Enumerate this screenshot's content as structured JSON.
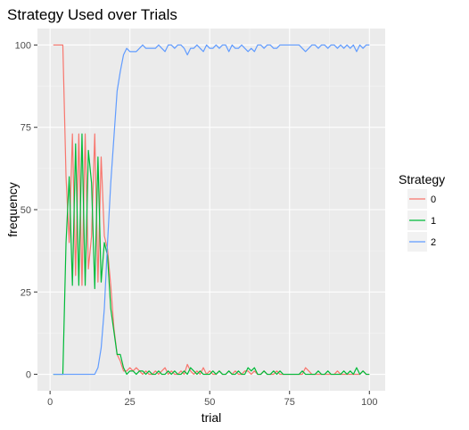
{
  "chart_data": {
    "type": "line",
    "title": "Strategy Used over Trials",
    "xlabel": "trial",
    "ylabel": "frequency",
    "xlim": [
      -3.95,
      104.95
    ],
    "ylim": [
      -5,
      105
    ],
    "xticks": [
      0,
      25,
      50,
      75,
      100
    ],
    "yticks": [
      0,
      25,
      50,
      75,
      100
    ],
    "grid": true,
    "legend": {
      "title": "Strategy",
      "placement": "right"
    },
    "series": [
      {
        "name": "0",
        "color": "#F8766D",
        "x": [
          1,
          2,
          3,
          4,
          5,
          6,
          7,
          8,
          9,
          10,
          11,
          12,
          13,
          14,
          15,
          16,
          17,
          18,
          19,
          20,
          21,
          22,
          23,
          24,
          25,
          26,
          27,
          28,
          29,
          30,
          31,
          32,
          33,
          34,
          35,
          36,
          37,
          38,
          39,
          40,
          41,
          42,
          43,
          44,
          45,
          46,
          47,
          48,
          49,
          50,
          51,
          52,
          53,
          54,
          55,
          56,
          57,
          58,
          59,
          60,
          61,
          62,
          63,
          64,
          65,
          66,
          67,
          68,
          69,
          70,
          71,
          72,
          73,
          74,
          75,
          76,
          77,
          78,
          79,
          80,
          81,
          82,
          83,
          84,
          85,
          86,
          87,
          88,
          89,
          90,
          91,
          92,
          93,
          94,
          95,
          96,
          97,
          98,
          99,
          100
        ],
        "y": [
          100,
          100,
          100,
          100,
          60,
          40,
          73,
          30,
          73,
          27,
          73,
          32,
          42,
          73,
          28,
          66,
          42,
          38,
          27,
          14,
          6,
          4,
          1,
          1,
          2,
          1,
          2,
          1,
          0,
          1,
          0,
          0,
          1,
          0,
          1,
          2,
          0,
          1,
          0,
          0,
          1,
          0,
          3,
          1,
          0,
          1,
          0,
          2,
          0,
          1,
          0,
          0,
          1,
          0,
          0,
          1,
          0,
          1,
          0,
          0,
          1,
          1,
          0,
          1,
          0,
          0,
          1,
          0,
          0,
          0,
          1,
          0,
          0,
          0,
          0,
          0,
          0,
          0,
          0,
          2,
          1,
          0,
          0,
          0,
          0,
          0,
          0,
          0,
          0,
          1,
          0,
          0,
          0,
          0,
          0,
          0,
          0,
          1,
          0,
          0
        ]
      },
      {
        "name": "1",
        "color": "#00BA38",
        "x": [
          1,
          2,
          3,
          4,
          5,
          6,
          7,
          8,
          9,
          10,
          11,
          12,
          13,
          14,
          15,
          16,
          17,
          18,
          19,
          20,
          21,
          22,
          23,
          24,
          25,
          26,
          27,
          28,
          29,
          30,
          31,
          32,
          33,
          34,
          35,
          36,
          37,
          38,
          39,
          40,
          41,
          42,
          43,
          44,
          45,
          46,
          47,
          48,
          49,
          50,
          51,
          52,
          53,
          54,
          55,
          56,
          57,
          58,
          59,
          60,
          61,
          62,
          63,
          64,
          65,
          66,
          67,
          68,
          69,
          70,
          71,
          72,
          73,
          74,
          75,
          76,
          77,
          78,
          79,
          80,
          81,
          82,
          83,
          84,
          85,
          86,
          87,
          88,
          89,
          90,
          91,
          92,
          93,
          94,
          95,
          96,
          97,
          98,
          99,
          100
        ],
        "y": [
          0,
          0,
          0,
          0,
          40,
          60,
          27,
          70,
          27,
          73,
          27,
          68,
          58,
          26,
          66,
          28,
          40,
          36,
          20,
          13,
          6,
          6,
          2,
          0,
          1,
          1,
          0,
          1,
          1,
          0,
          1,
          0,
          0,
          1,
          0,
          0,
          1,
          0,
          1,
          0,
          0,
          1,
          0,
          2,
          1,
          0,
          1,
          0,
          0,
          0,
          1,
          0,
          1,
          0,
          0,
          1,
          0,
          0,
          1,
          0,
          0,
          2,
          1,
          2,
          0,
          0,
          1,
          0,
          0,
          1,
          0,
          1,
          0,
          0,
          0,
          0,
          0,
          0,
          1,
          0,
          0,
          0,
          0,
          1,
          0,
          0,
          1,
          0,
          0,
          0,
          0,
          1,
          0,
          1,
          0,
          2,
          0,
          1,
          0,
          0
        ]
      },
      {
        "name": "2",
        "color": "#619CFF",
        "x": [
          1,
          2,
          3,
          4,
          5,
          6,
          7,
          8,
          9,
          10,
          11,
          12,
          13,
          14,
          15,
          16,
          17,
          18,
          19,
          20,
          21,
          22,
          23,
          24,
          25,
          26,
          27,
          28,
          29,
          30,
          31,
          32,
          33,
          34,
          35,
          36,
          37,
          38,
          39,
          40,
          41,
          42,
          43,
          44,
          45,
          46,
          47,
          48,
          49,
          50,
          51,
          52,
          53,
          54,
          55,
          56,
          57,
          58,
          59,
          60,
          61,
          62,
          63,
          64,
          65,
          66,
          67,
          68,
          69,
          70,
          71,
          72,
          73,
          74,
          75,
          76,
          77,
          78,
          79,
          80,
          81,
          82,
          83,
          84,
          85,
          86,
          87,
          88,
          89,
          90,
          91,
          92,
          93,
          94,
          95,
          96,
          97,
          98,
          99,
          100
        ],
        "y": [
          0,
          0,
          0,
          0,
          0,
          0,
          0,
          0,
          0,
          0,
          0,
          0,
          0,
          0,
          2,
          8,
          20,
          40,
          58,
          72,
          86,
          92,
          97,
          99,
          98,
          98,
          98,
          99,
          100,
          99,
          99,
          99,
          99,
          100,
          99,
          98,
          100,
          100,
          99,
          100,
          100,
          99,
          97,
          99,
          99,
          100,
          99,
          98,
          100,
          99,
          99,
          100,
          99,
          100,
          100,
          98,
          100,
          99,
          99,
          100,
          99,
          98,
          99,
          98,
          100,
          100,
          99,
          100,
          100,
          99,
          99,
          100,
          100,
          100,
          100,
          100,
          100,
          100,
          99,
          98,
          99,
          100,
          100,
          99,
          100,
          100,
          99,
          100,
          100,
          99,
          100,
          99,
          100,
          99,
          100,
          98,
          100,
          99,
          100,
          100
        ]
      }
    ]
  }
}
